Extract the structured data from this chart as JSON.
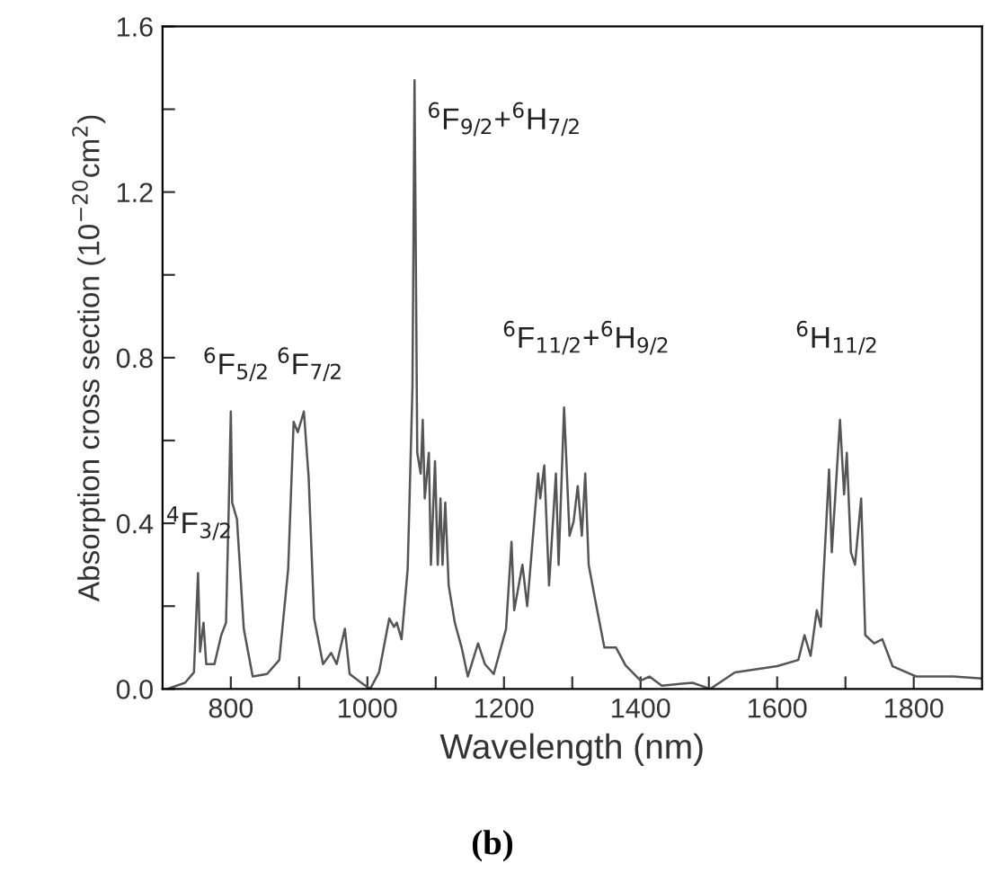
{
  "chart_data": {
    "type": "line",
    "xlabel": "Wavelength (nm)",
    "ylabel": "Absorption cross section (10$^{−20}$cm$^{2}$)",
    "xlim": [
      700,
      1900
    ],
    "ylim": [
      0,
      1.6
    ],
    "xticks": [
      800,
      {
        "value": 900,
        "label": null
      },
      1000,
      {
        "value": 1100,
        "label": null
      },
      1200,
      {
        "value": 1300,
        "label": null
      },
      1400,
      {
        "value": 1500,
        "label": null
      },
      1600,
      {
        "value": 1700,
        "label": null
      },
      1800
    ],
    "yticks": [
      {
        "value": 0,
        "label": "0.0"
      },
      {
        "value": 0.2,
        "label": null
      },
      {
        "value": 0.4,
        "label": "0.4"
      },
      {
        "value": 0.6,
        "label": null
      },
      {
        "value": 0.8,
        "label": "0.8"
      },
      {
        "value": 1.0,
        "label": null
      },
      {
        "value": 1.2,
        "label": "1.2"
      },
      {
        "value": 1.4,
        "label": null
      },
      {
        "value": 1.6,
        "label": "1.6"
      }
    ],
    "grid": false,
    "legend": false,
    "marker": "none",
    "line_style": "solid",
    "series": [
      {
        "color": "#555555",
        "x": [
          707,
          733,
          746,
          752,
          755,
          760,
          764,
          776,
          786,
          793,
          797,
          800,
          802,
          809,
          819,
          832,
          853,
          871,
          884,
          892,
          898,
          907,
          914,
          922,
          935,
          947,
          955,
          967,
          974,
          991,
          1004,
          1017,
          1032,
          1039,
          1043,
          1050,
          1059,
          1063,
          1066,
          1069,
          1073,
          1078,
          1081,
          1084,
          1090,
          1093,
          1099,
          1103,
          1107,
          1110,
          1114,
          1119,
          1128,
          1138,
          1147,
          1162,
          1172,
          1185,
          1203,
          1211,
          1215,
          1227,
          1234,
          1250,
          1253,
          1259,
          1266,
          1276,
          1280,
          1288,
          1296,
          1302,
          1308,
          1314,
          1319,
          1324,
          1333,
          1347,
          1364,
          1378,
          1400,
          1413,
          1431,
          1476,
          1502,
          1538,
          1600,
          1631,
          1640,
          1649,
          1658,
          1664,
          1676,
          1680,
          1692,
          1698,
          1702,
          1708,
          1714,
          1723,
          1729,
          1742,
          1754,
          1769,
          1804,
          1858,
          1900
        ],
        "values": [
          0.0,
          0.015,
          0.04,
          0.28,
          0.09,
          0.16,
          0.06,
          0.06,
          0.13,
          0.16,
          0.44,
          0.67,
          0.45,
          0.41,
          0.145,
          0.03,
          0.036,
          0.07,
          0.29,
          0.645,
          0.62,
          0.67,
          0.51,
          0.17,
          0.06,
          0.087,
          0.06,
          0.145,
          0.036,
          0.015,
          0.0,
          0.04,
          0.17,
          0.15,
          0.16,
          0.12,
          0.29,
          0.54,
          0.73,
          1.47,
          0.57,
          0.52,
          0.65,
          0.46,
          0.57,
          0.3,
          0.55,
          0.3,
          0.46,
          0.3,
          0.45,
          0.25,
          0.16,
          0.1,
          0.03,
          0.11,
          0.06,
          0.036,
          0.145,
          0.355,
          0.19,
          0.3,
          0.2,
          0.52,
          0.46,
          0.54,
          0.25,
          0.52,
          0.3,
          0.68,
          0.37,
          0.405,
          0.49,
          0.37,
          0.52,
          0.3,
          0.22,
          0.1,
          0.1,
          0.057,
          0.02,
          0.03,
          0.008,
          0.015,
          0.0,
          0.04,
          0.055,
          0.07,
          0.13,
          0.08,
          0.19,
          0.15,
          0.53,
          0.33,
          0.65,
          0.47,
          0.57,
          0.33,
          0.3,
          0.46,
          0.13,
          0.11,
          0.12,
          0.055,
          0.03,
          0.03,
          0.025
        ]
      }
    ],
    "annotations": [
      "$^{4}$F$_{3/2}$",
      "$^{6}$F$_{5/2}$",
      "$^{6}$F$_{7/2}$",
      "$^{6}$F$_{9/2}$+$^{6}$H$_{7/2}$",
      "$^{6}$F$_{11/2}$+$^{6}$H$_{9/2}$",
      "$^{6}$H$_{11/2}$",
      "(b)"
    ]
  }
}
